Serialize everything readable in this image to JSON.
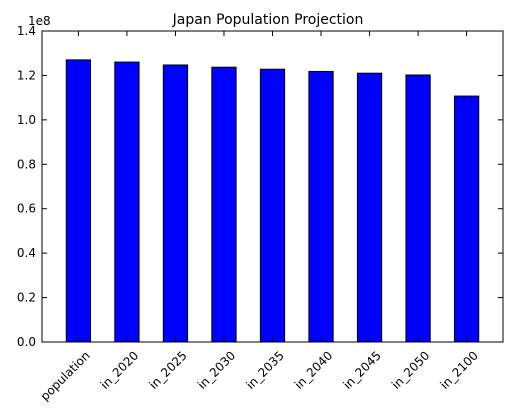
{
  "chart_data": {
    "type": "bar",
    "title": "Japan Population Projection",
    "categories": [
      "population",
      "in_2020",
      "in_2025",
      "in_2030",
      "in_2035",
      "in_2040",
      "in_2045",
      "in_2050",
      "in_2100"
    ],
    "values": [
      127000000,
      126000000,
      124700000,
      123700000,
      122800000,
      121800000,
      121000000,
      120200000,
      110700000
    ],
    "ylim": [
      0,
      140000000
    ],
    "y_ticks": [
      0,
      20000000,
      40000000,
      60000000,
      80000000,
      100000000,
      120000000,
      140000000
    ],
    "y_tick_labels": [
      "0.0",
      "0.2",
      "0.4",
      "0.6",
      "0.8",
      "1.0",
      "1.2",
      "1.4"
    ],
    "y_offset_label": "1e8",
    "xlabel": "",
    "ylabel": "",
    "x_tick_rotation": 45,
    "bar_color": "#0000ff",
    "bar_edge_color": "#000000",
    "grid": false,
    "legend": false
  }
}
